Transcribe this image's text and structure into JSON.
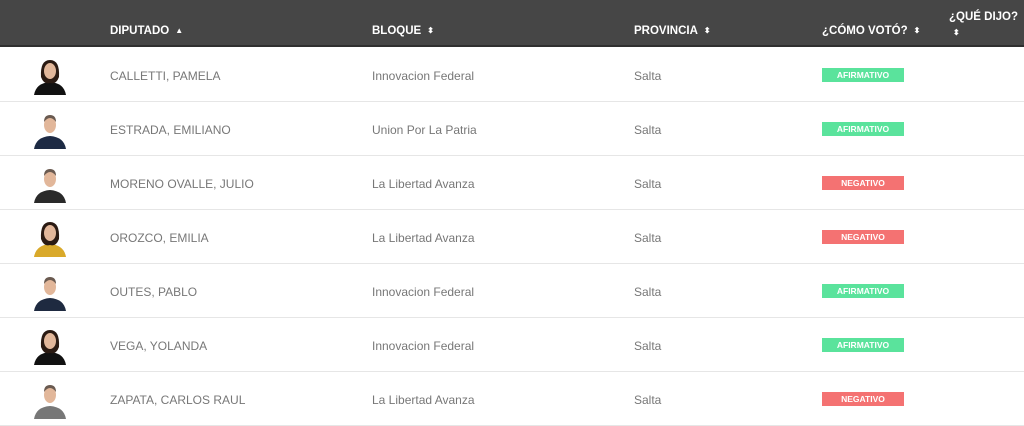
{
  "header": {
    "diputado": "DIPUTADO",
    "bloque": "BLOQUE",
    "provincia": "PROVINCIA",
    "como_voto": "¿CÓMO VOTÓ?",
    "que_dijo": "¿QUÉ DIJO?",
    "sort_asc_icon": "▲",
    "sort_icon": "⬍"
  },
  "colors": {
    "afirmativo": "#5ae39c",
    "negativo": "#f47272",
    "header": "#464646"
  },
  "rows": [
    {
      "name": "CALLETTI, PAMELA",
      "bloque": "Innovacion Federal",
      "provincia": "Salta",
      "voto": "AFIRMATIVO",
      "gender": "f",
      "suit": "#111"
    },
    {
      "name": "ESTRADA, EMILIANO",
      "bloque": "Union Por La Patria",
      "provincia": "Salta",
      "voto": "AFIRMATIVO",
      "gender": "m",
      "suit": "#1d2a44"
    },
    {
      "name": "MORENO OVALLE, JULIO",
      "bloque": "La Libertad Avanza",
      "provincia": "Salta",
      "voto": "NEGATIVO",
      "gender": "m",
      "suit": "#2a2a2a"
    },
    {
      "name": "OROZCO, EMILIA",
      "bloque": "La Libertad Avanza",
      "provincia": "Salta",
      "voto": "NEGATIVO",
      "gender": "f",
      "suit": "#d9a92a"
    },
    {
      "name": "OUTES, PABLO",
      "bloque": "Innovacion Federal",
      "provincia": "Salta",
      "voto": "AFIRMATIVO",
      "gender": "m",
      "suit": "#1e2a40"
    },
    {
      "name": "VEGA, YOLANDA",
      "bloque": "Innovacion Federal",
      "provincia": "Salta",
      "voto": "AFIRMATIVO",
      "gender": "f",
      "suit": "#111"
    },
    {
      "name": "ZAPATA, CARLOS RAUL",
      "bloque": "La Libertad Avanza",
      "provincia": "Salta",
      "voto": "NEGATIVO",
      "gender": "m",
      "suit": "#777"
    }
  ]
}
